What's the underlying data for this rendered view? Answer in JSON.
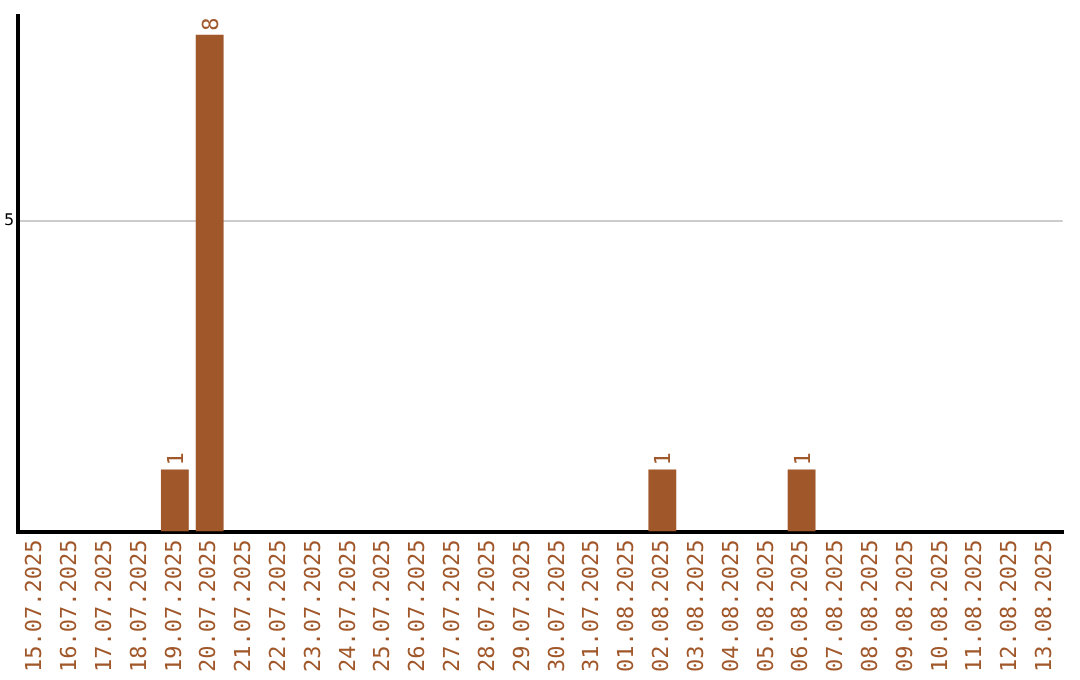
{
  "chart_data": {
    "type": "bar",
    "categories": [
      "15.07.2025",
      "16.07.2025",
      "17.07.2025",
      "18.07.2025",
      "19.07.2025",
      "20.07.2025",
      "21.07.2025",
      "22.07.2025",
      "23.07.2025",
      "24.07.2025",
      "25.07.2025",
      "26.07.2025",
      "27.07.2025",
      "28.07.2025",
      "29.07.2025",
      "30.07.2025",
      "31.07.2025",
      "01.08.2025",
      "02.08.2025",
      "03.08.2025",
      "04.08.2025",
      "05.08.2025",
      "06.08.2025",
      "07.08.2025",
      "08.08.2025",
      "09.08.2025",
      "10.08.2025",
      "11.08.2025",
      "12.08.2025",
      "13.08.2025"
    ],
    "values": [
      0,
      0,
      0,
      0,
      1,
      8,
      0,
      0,
      0,
      0,
      0,
      0,
      0,
      0,
      0,
      0,
      0,
      0,
      1,
      0,
      0,
      0,
      1,
      0,
      0,
      0,
      0,
      0,
      0,
      0
    ],
    "value_labels": [
      null,
      null,
      null,
      null,
      "1",
      "8",
      null,
      null,
      null,
      null,
      null,
      null,
      null,
      null,
      null,
      null,
      null,
      null,
      "1",
      null,
      null,
      null,
      "1",
      null,
      null,
      null,
      null,
      null,
      null,
      null
    ],
    "color": "#a0572a",
    "ylim": [
      0,
      8.3
    ],
    "yticks": [
      5
    ],
    "grid": "y",
    "legend": false
  }
}
